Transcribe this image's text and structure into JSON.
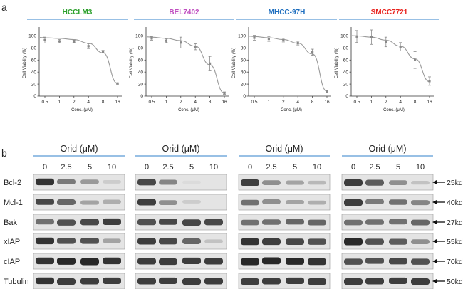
{
  "panel_a_label": "a",
  "panel_b_label": "b",
  "chart_data": [
    {
      "type": "line",
      "title": "HCCLM3",
      "title_color": "#2ca02c",
      "xlabel": "Conc. (μM)",
      "ylabel": "Cell Viability (%)",
      "x_ticks": [
        "0.5",
        "1",
        "2",
        "4",
        "8",
        "16"
      ],
      "y_ticks": [
        "0",
        "20",
        "40",
        "60",
        "80",
        "100"
      ],
      "ylim": [
        0,
        110
      ],
      "x_scale": "log2",
      "x": [
        0.5,
        1,
        2,
        4,
        8,
        16
      ],
      "values": [
        93,
        91,
        91,
        83,
        74,
        21
      ],
      "errors": [
        5,
        3,
        2,
        4,
        2,
        1
      ],
      "fit": [
        97,
        96,
        94,
        88,
        72,
        21
      ]
    },
    {
      "type": "line",
      "title": "BEL7402",
      "title_color": "#c04fc0",
      "xlabel": "Conc. (μM)",
      "ylabel": "Cell Viability (%)",
      "x_ticks": [
        "0.5",
        "1",
        "2",
        "4",
        "8",
        "16"
      ],
      "y_ticks": [
        "0",
        "20",
        "40",
        "60",
        "80",
        "100"
      ],
      "ylim": [
        0,
        110
      ],
      "x_scale": "log2",
      "x": [
        0.5,
        1,
        2,
        4,
        8,
        16
      ],
      "values": [
        96,
        92,
        89,
        82,
        54,
        5
      ],
      "errors": [
        3,
        3,
        9,
        5,
        12,
        2
      ],
      "fit": [
        98,
        96,
        92,
        83,
        52,
        5
      ]
    },
    {
      "type": "line",
      "title": "MHCC-97H",
      "title_color": "#1f6fbf",
      "xlabel": "Conc. (μM)",
      "ylabel": "Cell Viability (%)",
      "x_ticks": [
        "0.5",
        "1",
        "2",
        "4",
        "8",
        "16"
      ],
      "y_ticks": [
        "0",
        "20",
        "40",
        "60",
        "80",
        "100"
      ],
      "ylim": [
        0,
        110
      ],
      "x_scale": "log2",
      "x": [
        0.5,
        1,
        2,
        4,
        8,
        16
      ],
      "values": [
        97,
        95,
        93,
        88,
        73,
        8
      ],
      "errors": [
        4,
        4,
        3,
        3,
        5,
        2
      ],
      "fit": [
        99,
        97,
        94,
        88,
        70,
        8
      ]
    },
    {
      "type": "line",
      "title": "SMCC7721",
      "title_color": "#e8231e",
      "xlabel": "Conc. (μM)",
      "ylabel": "Cell Viability (%)",
      "x_ticks": [
        "0.5",
        "1",
        "2",
        "4",
        "8",
        "16"
      ],
      "y_ticks": [
        "0",
        "20",
        "40",
        "60",
        "80",
        "100"
      ],
      "ylim": [
        0,
        110
      ],
      "x_scale": "log2",
      "x": [
        0.5,
        1,
        2,
        4,
        8,
        16
      ],
      "values": [
        99,
        98,
        90,
        82,
        60,
        25
      ],
      "errors": [
        10,
        12,
        8,
        7,
        14,
        7
      ],
      "fit": [
        100,
        98,
        93,
        83,
        62,
        24
      ]
    }
  ],
  "western_blot": {
    "header": "Orid (μM)",
    "concentrations": [
      "0",
      "2.5",
      "5",
      "10"
    ],
    "proteins": [
      "Bcl-2",
      "Mcl-1",
      "Bak",
      "xIAP",
      "cIAP",
      "Tubulin"
    ],
    "sizes": [
      "25kd",
      "40kd",
      "27kd",
      "55kd",
      "70kd",
      "50kd"
    ],
    "intensity": [
      [
        [
          0.9,
          0.55,
          0.4,
          0.15
        ],
        [
          0.8,
          0.5,
          0.08,
          0.0
        ],
        [
          0.85,
          0.45,
          0.35,
          0.25
        ],
        [
          0.85,
          0.7,
          0.45,
          0.2
        ]
      ],
      [
        [
          0.8,
          0.65,
          0.35,
          0.3
        ],
        [
          0.85,
          0.45,
          0.15,
          0.0
        ],
        [
          0.6,
          0.45,
          0.35,
          0.3
        ],
        [
          0.85,
          0.55,
          0.6,
          0.5
        ]
      ],
      [
        [
          0.6,
          0.75,
          0.8,
          0.85
        ],
        [
          0.75,
          0.8,
          0.8,
          0.8
        ],
        [
          0.6,
          0.6,
          0.65,
          0.65
        ],
        [
          0.6,
          0.6,
          0.6,
          0.65
        ]
      ],
      [
        [
          0.9,
          0.75,
          0.75,
          0.35
        ],
        [
          0.85,
          0.8,
          0.65,
          0.2
        ],
        [
          0.9,
          0.85,
          0.8,
          0.75
        ],
        [
          0.95,
          0.75,
          0.7,
          0.45
        ]
      ],
      [
        [
          0.9,
          0.95,
          0.95,
          0.9
        ],
        [
          0.85,
          0.85,
          0.85,
          0.85
        ],
        [
          0.95,
          0.95,
          0.95,
          0.9
        ],
        [
          0.75,
          0.75,
          0.8,
          0.75
        ]
      ],
      [
        [
          0.9,
          0.85,
          0.85,
          0.85
        ],
        [
          0.85,
          0.85,
          0.85,
          0.85
        ],
        [
          0.85,
          0.85,
          0.85,
          0.85
        ],
        [
          0.85,
          0.85,
          0.85,
          0.85
        ]
      ]
    ]
  }
}
